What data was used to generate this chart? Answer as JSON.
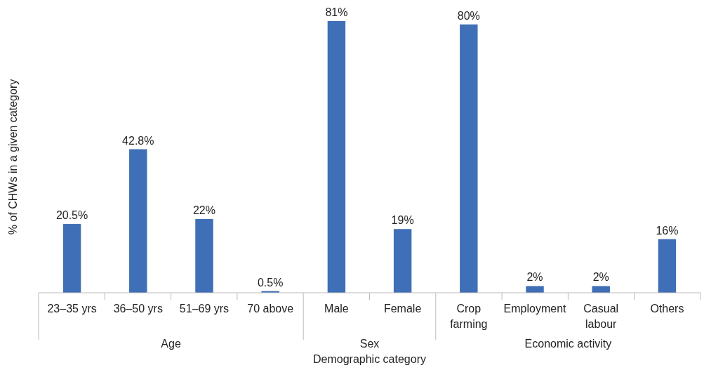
{
  "chart_data": {
    "type": "bar",
    "xlabel": "Demographic category",
    "ylabel": "% of CHWs in a given category",
    "categories": [
      "23–35 yrs",
      "36–50 yrs",
      "51–69 yrs",
      "70 above",
      "Male",
      "Female",
      "Crop farming",
      "Employment",
      "Casual labour",
      "Others"
    ],
    "values": [
      20.5,
      42.8,
      22,
      0.5,
      81,
      19,
      80,
      2,
      2,
      16
    ],
    "value_labels": [
      "20.5%",
      "42.8%",
      "22%",
      "0.5%",
      "81%",
      "19%",
      "80%",
      "2%",
      "2%",
      "16%"
    ],
    "color": "#3f6fb6",
    "annotations": [
      "Age",
      "Sex",
      "Economic activity"
    ]
  }
}
